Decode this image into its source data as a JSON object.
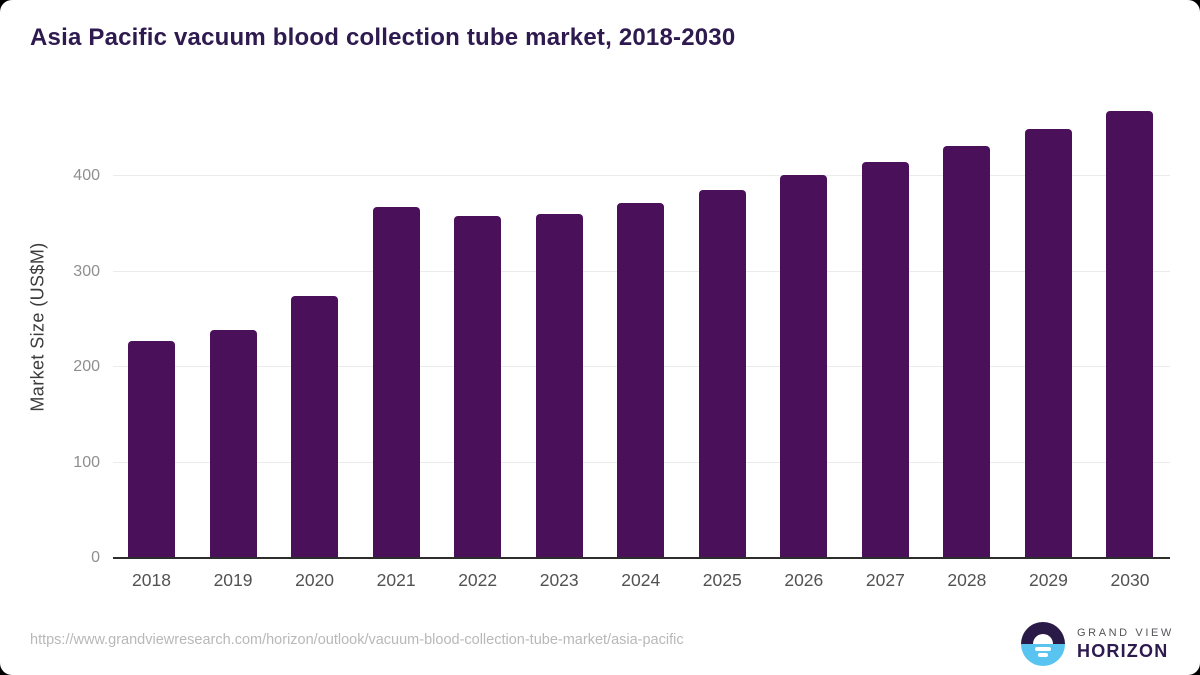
{
  "page": {
    "background_color": "#000000",
    "card_background_color": "#ffffff"
  },
  "chart": {
    "title": "Asia Pacific vacuum blood collection tube market, 2018-2030",
    "ylabel": "Market Size (US$M)"
  },
  "chart_data": {
    "type": "bar",
    "title": "Asia Pacific vacuum blood collection tube market, 2018-2030",
    "xlabel": "",
    "ylabel": "Market Size (US$M)",
    "categories": [
      "2018",
      "2019",
      "2020",
      "2021",
      "2022",
      "2023",
      "2024",
      "2025",
      "2026",
      "2027",
      "2028",
      "2029",
      "2030"
    ],
    "values": [
      227,
      239,
      274,
      368,
      358,
      360,
      372,
      386,
      401,
      415,
      432,
      449,
      468
    ],
    "yticks": [
      0,
      100,
      200,
      300,
      400
    ],
    "ylim": [
      0,
      485
    ],
    "grid": "horizontal-only",
    "legend": "none",
    "bar_color": "#4a1059"
  },
  "colors": {
    "title": "#2e1a4f",
    "bar": "#4a1059",
    "gridline": "#ebebeb",
    "axis_line": "#2d2d2d",
    "logo_dark": "#2a1a47",
    "logo_blue": "#58c4ef"
  },
  "footer": {
    "source_url": "https://www.grandviewresearch.com/horizon/outlook/vacuum-blood-collection-tube-market/asia-pacific",
    "logo": {
      "line1": "GRAND VIEW",
      "line2": "HORIZON"
    }
  }
}
